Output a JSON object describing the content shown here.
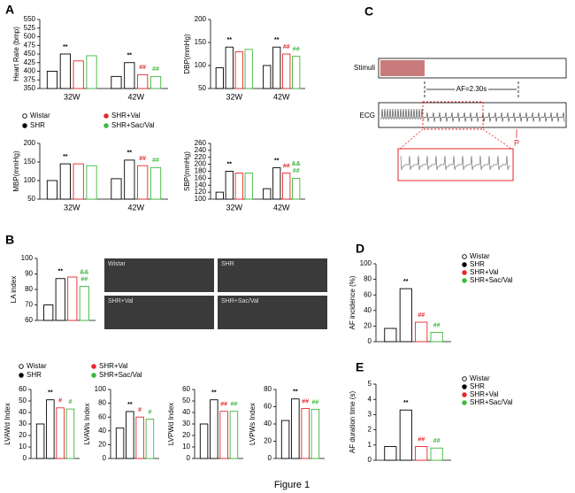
{
  "panels": [
    "A",
    "B",
    "C",
    "D",
    "E"
  ],
  "caption": "Figure 1",
  "ecg": {
    "stimuli": "Stimuli",
    "ecg": "ECG",
    "af": "AF=2.30s",
    "p": "P"
  },
  "echo_labels": [
    "Wistar",
    "SHR",
    "SHR+Val",
    "SHR+Sac/Val"
  ],
  "chart_data": [
    {
      "type": "bar",
      "ylabel": "Heart Rate (bmp)",
      "categories": [
        "32W",
        "42W"
      ],
      "ylim": [
        350,
        550
      ],
      "yticks": [
        350,
        375,
        400,
        425,
        450,
        475,
        500,
        525,
        550
      ],
      "series": [
        {
          "name": "Wistar",
          "color": "#000000",
          "values": [
            400,
            385
          ]
        },
        {
          "name": "SHR",
          "color": "#000000",
          "values": [
            450,
            425
          ],
          "annotations": [
            "**",
            "**"
          ]
        },
        {
          "name": "SHR+Val",
          "color": "#e8262b",
          "values": [
            430,
            390
          ],
          "annotations": [
            null,
            "##"
          ]
        },
        {
          "name": "SHR+Sac/Val",
          "color": "#3cb83c",
          "values": [
            445,
            385
          ],
          "annotations": [
            null,
            "##"
          ]
        }
      ]
    },
    {
      "type": "bar",
      "ylabel": "DBP(mmHg)",
      "categories": [
        "32W",
        "42W"
      ],
      "ylim": [
        50,
        200
      ],
      "yticks": [
        50,
        100,
        150,
        200
      ],
      "series": [
        {
          "name": "Wistar",
          "color": "#000000",
          "values": [
            95,
            100
          ]
        },
        {
          "name": "SHR",
          "color": "#000000",
          "values": [
            140,
            140
          ],
          "annotations": [
            "**",
            "**"
          ]
        },
        {
          "name": "SHR+Val",
          "color": "#e8262b",
          "values": [
            130,
            125
          ],
          "annotations": [
            null,
            "##"
          ]
        },
        {
          "name": "SHR+Sac/Val",
          "color": "#3cb83c",
          "values": [
            135,
            120
          ],
          "annotations": [
            null,
            "##"
          ]
        }
      ]
    },
    {
      "type": "bar",
      "ylabel": "MBP(mmHg)",
      "categories": [
        "32W",
        "42W"
      ],
      "ylim": [
        50,
        200
      ],
      "yticks": [
        50,
        100,
        150,
        200
      ],
      "series": [
        {
          "name": "Wistar",
          "color": "#000000",
          "values": [
            100,
            105
          ]
        },
        {
          "name": "SHR",
          "color": "#000000",
          "values": [
            145,
            155
          ],
          "annotations": [
            "**",
            "**"
          ]
        },
        {
          "name": "SHR+Val",
          "color": "#e8262b",
          "values": [
            145,
            140
          ],
          "annotations": [
            null,
            "##"
          ]
        },
        {
          "name": "SHR+Sac/Val",
          "color": "#3cb83c",
          "values": [
            140,
            135
          ],
          "annotations": [
            null,
            "##"
          ]
        }
      ]
    },
    {
      "type": "bar",
      "ylabel": "SBP(mmHg)",
      "categories": [
        "32W",
        "42W"
      ],
      "ylim": [
        100,
        260
      ],
      "yticks": [
        100,
        120,
        140,
        160,
        180,
        200,
        220,
        240,
        260
      ],
      "series": [
        {
          "name": "Wistar",
          "color": "#000000",
          "values": [
            120,
            130
          ]
        },
        {
          "name": "SHR",
          "color": "#000000",
          "values": [
            180,
            190
          ],
          "annotations": [
            "**",
            "**"
          ]
        },
        {
          "name": "SHR+Val",
          "color": "#e8262b",
          "values": [
            175,
            175
          ],
          "annotations": [
            null,
            "##"
          ]
        },
        {
          "name": "SHR+Sac/Val",
          "color": "#3cb83c",
          "values": [
            175,
            160
          ],
          "annotations": [
            null,
            [
              "##",
              "&&"
            ]
          ]
        }
      ]
    },
    {
      "type": "bar",
      "ylabel": "LA index",
      "categories": [
        null
      ],
      "ylim": [
        60,
        100
      ],
      "yticks": [
        60,
        70,
        80,
        90,
        100
      ],
      "series": [
        {
          "name": "Wistar",
          "color": "#000000",
          "values": [
            70
          ]
        },
        {
          "name": "SHR",
          "color": "#000000",
          "values": [
            87
          ],
          "annotations": [
            "**"
          ]
        },
        {
          "name": "SHR+Val",
          "color": "#e8262b",
          "values": [
            88
          ]
        },
        {
          "name": "SHR+Sac/Val",
          "color": "#3cb83c",
          "values": [
            82
          ],
          "annotations": [
            [
              "##",
              "&&"
            ]
          ]
        }
      ]
    },
    {
      "type": "bar",
      "ylabel": "LVAWd Index",
      "categories": [
        null
      ],
      "ylim": [
        0,
        60
      ],
      "yticks": [
        0,
        10,
        20,
        30,
        40,
        50,
        60
      ],
      "series": [
        {
          "name": "Wistar",
          "color": "#000000",
          "values": [
            30
          ]
        },
        {
          "name": "SHR",
          "color": "#000000",
          "values": [
            51
          ],
          "annotations": [
            "**"
          ]
        },
        {
          "name": "SHR+Val",
          "color": "#e8262b",
          "values": [
            44
          ],
          "annotations": [
            "#"
          ]
        },
        {
          "name": "SHR+Sac/Val",
          "color": "#3cb83c",
          "values": [
            43
          ],
          "annotations": [
            "#"
          ]
        }
      ]
    },
    {
      "type": "bar",
      "ylabel": "LVAWs Index",
      "categories": [
        null
      ],
      "ylim": [
        0,
        100
      ],
      "yticks": [
        0,
        20,
        40,
        60,
        80,
        100
      ],
      "series": [
        {
          "name": "Wistar",
          "color": "#000000",
          "values": [
            44
          ]
        },
        {
          "name": "SHR",
          "color": "#000000",
          "values": [
            68
          ],
          "annotations": [
            "**"
          ]
        },
        {
          "name": "SHR+Val",
          "color": "#e8262b",
          "values": [
            60
          ],
          "annotations": [
            "#"
          ]
        },
        {
          "name": "SHR+Sac/Val",
          "color": "#3cb83c",
          "values": [
            57
          ],
          "annotations": [
            "#"
          ]
        }
      ]
    },
    {
      "type": "bar",
      "ylabel": "LVPWd Index",
      "categories": [
        null
      ],
      "ylim": [
        0,
        60
      ],
      "yticks": [
        0,
        10,
        20,
        30,
        40,
        50,
        60
      ],
      "series": [
        {
          "name": "Wistar",
          "color": "#000000",
          "values": [
            30
          ]
        },
        {
          "name": "SHR",
          "color": "#000000",
          "values": [
            51
          ],
          "annotations": [
            "**"
          ]
        },
        {
          "name": "SHR+Val",
          "color": "#e8262b",
          "values": [
            41
          ],
          "annotations": [
            "##"
          ]
        },
        {
          "name": "SHR+Sac/Val",
          "color": "#3cb83c",
          "values": [
            41
          ],
          "annotations": [
            "##"
          ]
        }
      ]
    },
    {
      "type": "bar",
      "ylabel": "LVPWs Index",
      "categories": [
        null
      ],
      "ylim": [
        0,
        80
      ],
      "yticks": [
        0,
        20,
        40,
        60,
        80
      ],
      "series": [
        {
          "name": "Wistar",
          "color": "#000000",
          "values": [
            44
          ]
        },
        {
          "name": "SHR",
          "color": "#000000",
          "values": [
            69
          ],
          "annotations": [
            "**"
          ]
        },
        {
          "name": "SHR+Val",
          "color": "#e8262b",
          "values": [
            58
          ],
          "annotations": [
            "##"
          ]
        },
        {
          "name": "SHR+Sac/Val",
          "color": "#3cb83c",
          "values": [
            57
          ],
          "annotations": [
            "##"
          ]
        }
      ]
    },
    {
      "type": "bar",
      "ylabel": "AF incidence (%)",
      "categories": [
        null
      ],
      "ylim": [
        0,
        100
      ],
      "yticks": [
        0,
        20,
        40,
        60,
        80,
        100
      ],
      "series": [
        {
          "name": "Wistar",
          "color": "#000000",
          "values": [
            17
          ]
        },
        {
          "name": "SHR",
          "color": "#000000",
          "values": [
            68
          ],
          "annotations": [
            "**"
          ]
        },
        {
          "name": "SHR+Val",
          "color": "#e8262b",
          "values": [
            25
          ],
          "annotations": [
            "##"
          ]
        },
        {
          "name": "SHR+Sac/Val",
          "color": "#3cb83c",
          "values": [
            12
          ],
          "annotations": [
            "##"
          ]
        }
      ]
    },
    {
      "type": "bar",
      "ylabel": "AF duration time (s)",
      "categories": [
        null
      ],
      "ylim": [
        0,
        5
      ],
      "yticks": [
        0,
        1,
        2,
        3,
        4,
        5
      ],
      "series": [
        {
          "name": "Wistar",
          "color": "#000000",
          "values": [
            0.9
          ]
        },
        {
          "name": "SHR",
          "color": "#000000",
          "values": [
            3.3
          ],
          "annotations": [
            "**"
          ]
        },
        {
          "name": "SHR+Val",
          "color": "#e8262b",
          "values": [
            0.9
          ],
          "annotations": [
            "##"
          ]
        },
        {
          "name": "SHR+Sac/Val",
          "color": "#3cb83c",
          "values": [
            0.8
          ],
          "annotations": [
            "##"
          ]
        }
      ]
    }
  ]
}
